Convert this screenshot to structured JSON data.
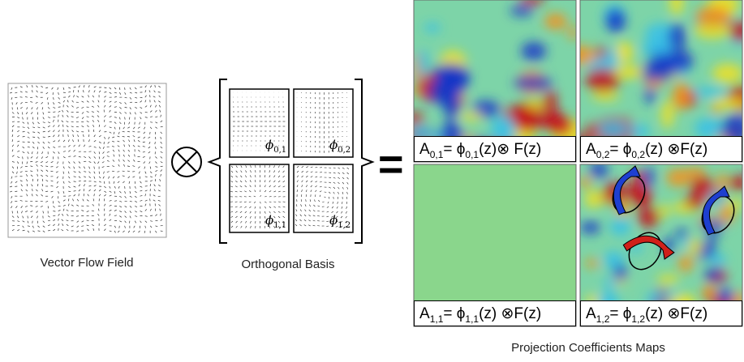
{
  "flow_field": {
    "label": "Vector Flow Field"
  },
  "operators": {
    "equals": "="
  },
  "basis": {
    "label": "Orthogonal Basis",
    "items": [
      {
        "symbol": "ϕ",
        "sub": "0,1"
      },
      {
        "symbol": "ϕ",
        "sub": "0,2"
      },
      {
        "symbol": "ϕ",
        "sub": "1,1"
      },
      {
        "symbol": "ϕ",
        "sub": "1,2"
      }
    ]
  },
  "maps": {
    "label": "Projection Coefficients Maps",
    "items": [
      {
        "lhs": "A",
        "sub": "0,1",
        "eq": "= ϕ",
        "rhs": "(z)⊗ F(z)"
      },
      {
        "lhs": "A",
        "sub": "0,2",
        "eq": "= ϕ",
        "rhs": "(z) ⊗F(z)"
      },
      {
        "lhs": "A",
        "sub": "1,1",
        "eq": "= ϕ",
        "rhs": "(z) ⊗F(z)"
      },
      {
        "lhs": "A",
        "sub": "1,2",
        "eq": "= ϕ",
        "rhs": "(z) ⊗F(z)"
      }
    ]
  }
}
